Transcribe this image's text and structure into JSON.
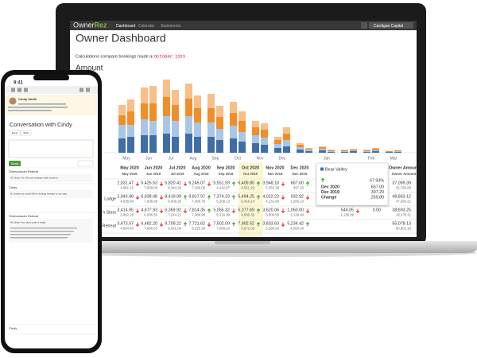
{
  "nav": {
    "brand_a": "Owner",
    "brand_b": "Rez",
    "links": [
      "Dashboard",
      "Calendar",
      "Statements"
    ],
    "user": "Cardigan Capital"
  },
  "page": {
    "title": "Owner Dashboard",
    "note": "Calculations compare bookings made as of",
    "date": "October 13th.",
    "section": "Amount"
  },
  "chart_data": {
    "type": "bar",
    "stacked": true,
    "categories": [
      "May",
      null,
      "Jun",
      null,
      "Jul",
      null,
      "Aug",
      null,
      "Sep",
      null,
      "Oct",
      null,
      "Nov",
      null,
      "Dec",
      null,
      null,
      null,
      "Jan",
      null,
      null,
      null,
      "Feb",
      null,
      "Mar",
      null
    ],
    "ylim": [
      0,
      100
    ],
    "series": [
      {
        "color": "#3f6ea6",
        "values": [
          18,
          20,
          22,
          22,
          24,
          20,
          24,
          20,
          20,
          16,
          18,
          14,
          12,
          10,
          6,
          8,
          4,
          2,
          3,
          1,
          1,
          2,
          1,
          2,
          1,
          1
        ]
      },
      {
        "color": "#a8c7e6",
        "values": [
          17,
          15,
          20,
          18,
          22,
          20,
          22,
          18,
          18,
          14,
          16,
          12,
          10,
          9,
          5,
          8,
          3,
          2,
          2,
          1,
          1,
          1,
          1,
          1,
          0,
          1
        ]
      },
      {
        "color": "#f08e2a",
        "values": [
          12,
          17,
          20,
          22,
          24,
          20,
          22,
          18,
          18,
          15,
          16,
          14,
          10,
          10,
          5,
          8,
          3,
          1,
          2,
          1,
          1,
          1,
          1,
          2,
          1,
          1
        ]
      },
      {
        "color": "#f8bf88",
        "values": [
          13,
          15,
          20,
          22,
          22,
          19,
          19,
          16,
          18,
          14,
          14,
          12,
          8,
          8,
          4,
          8,
          2,
          1,
          1,
          1,
          1,
          1,
          1,
          1,
          0,
          0
        ]
      }
    ]
  },
  "table": {
    "columns": [
      {
        "cur": "May 2020",
        "prev": "May 2019"
      },
      {
        "cur": "Jun 2020",
        "prev": "Jun 2019"
      },
      {
        "cur": "Jul 2020",
        "prev": "Jul 2019"
      },
      {
        "cur": "Aug 2020",
        "prev": "Aug 2019"
      },
      {
        "cur": "Sep 2020",
        "prev": "Sep 2019"
      },
      {
        "cur": "Oct 2020",
        "prev": "Oct 2019",
        "highlight": true
      },
      {
        "cur": "Nov 2020",
        "prev": "Nov 2019"
      },
      {
        "cur": "Dec 2020",
        "prev": "Dec 2019"
      },
      {
        "cur": null,
        "prev": null
      },
      {
        "cur": null,
        "prev": null
      },
      {
        "cur": null,
        "prev": null
      },
      {
        "cur": "Owner Amount",
        "prev": "Owner Amount"
      }
    ],
    "rows": [
      {
        "label": null,
        "cells": [
          {
            "cur": "2,031.47",
            "prev": "4,061.15",
            "trend": "down"
          },
          {
            "cur": "6,425.53",
            "prev": "7,608.06",
            "trend": "down"
          },
          {
            "cur": "5,820.41",
            "prev": "8,344.26",
            "trend": "down"
          },
          {
            "cur": "6,245.07",
            "prev": "7,185.05",
            "trend": "down"
          },
          {
            "cur": "5,551.93",
            "prev": "4,142.87",
            "trend": "up"
          },
          {
            "cur": "6,409.80",
            "prev": "4,551.29",
            "trend": "up"
          },
          {
            "cur": "3,948.18",
            "prev": "6,353.38",
            "trend": "down"
          },
          {
            "cur": "667.00",
            "prev": "397.20",
            "trend": "up"
          },
          null,
          null,
          null,
          {
            "cur": "37,099.39",
            "prev": "32,780.80"
          }
        ]
      },
      {
        "label": "Lodge",
        "cells": [
          {
            "cur": "2,943.48",
            "prev": "4,035.84",
            "trend": "down"
          },
          {
            "cur": "6,938.08",
            "prev": "7,005.58",
            "trend": "down"
          },
          {
            "cur": "8,419.09",
            "prev": "8,009.28",
            "trend": "up"
          },
          {
            "cur": "9,817.97",
            "prev": "7,386.78",
            "trend": "up"
          },
          {
            "cur": "7,374.23",
            "prev": "5,208.13",
            "trend": "up"
          },
          {
            "cur": "5,494.25",
            "prev": "5,416.14",
            "trend": "up"
          },
          {
            "cur": "4,022.23",
            "prev": "4,131.80",
            "trend": "down"
          },
          {
            "cur": "932.92",
            "prev": "1,265.10",
            "trend": "down"
          },
          null,
          null,
          null,
          {
            "cur": "48,863.12",
            "prev": "47,393.21"
          }
        ]
      },
      {
        "label": "h Stars",
        "cells": [
          {
            "cur": "3,414.95",
            "prev": "3,882.26",
            "trend": "down"
          },
          {
            "cur": "4,677.93",
            "prev": "6,006.55",
            "trend": "down"
          },
          {
            "cur": "6,369.92",
            "prev": "7,244.21",
            "trend": "down"
          },
          {
            "cur": "7,814.35",
            "prev": "7,388.98",
            "trend": "up"
          },
          {
            "cur": "5,055.32",
            "prev": "5,316.99",
            "trend": "down"
          },
          {
            "cur": "5,277.69",
            "prev": "4,686.38",
            "trend": "up"
          },
          {
            "cur": "3,620.06",
            "prev": "3,809.58",
            "trend": "down"
          },
          {
            "cur": "1,050.00",
            "prev": "1,139.40",
            "trend": "down"
          },
          null,
          {
            "cur": "546.05",
            "prev": "1,136.09",
            "trend": "down"
          },
          {
            "cur": "0.00"
          },
          {
            "cur": "38,693.25",
            "prev": "42,178.11"
          }
        ]
      },
      {
        "label": "Retreat",
        "cells": [
          {
            "cur": "3,473.57",
            "prev": "4,954.43",
            "trend": "down"
          },
          {
            "cur": "6,482.20",
            "prev": "7,658.53",
            "trend": "down"
          },
          {
            "cur": "9,709.22",
            "prev": "9,341.09",
            "trend": "up"
          },
          {
            "cur": "7,721.62",
            "prev": "8,225.39",
            "trend": "down"
          },
          {
            "cur": "7,502.09",
            "prev": "7,008.10",
            "trend": "up"
          },
          {
            "cur": "7,992.52",
            "prev": "5,671.05",
            "trend": "up"
          },
          {
            "cur": "3,833.63",
            "prev": "5,160.93",
            "trend": "down"
          },
          {
            "cur": "5,234.42",
            "prev": "4,580.00",
            "trend": "up"
          },
          null,
          null,
          null,
          {
            "cur": "55,078.13",
            "prev": "50,801.10"
          }
        ]
      }
    ]
  },
  "tooltip": {
    "title": "Bear Valley",
    "percent": "67.93%",
    "rows": [
      {
        "label": "Dec 2020",
        "value": "667.00"
      },
      {
        "label": "Dec 2019",
        "value": "397.20"
      },
      {
        "label": "Change",
        "value": "269.80"
      }
    ]
  },
  "phone": {
    "time": "9:41",
    "contact": "Cindy Smith",
    "heading": "Conversation with Cindy",
    "tabs": [
      "Email",
      "SMS"
    ],
    "send": "Send",
    "messages": [
      {
        "from": "Shenandoah Retreat",
        "text": "Hi Cindy, Yes. We can arrange early check-in."
      },
      {
        "from": "Cindy",
        "text": "Hi, thanks so much! We're looking forward to our stay."
      },
      {
        "from": "Shenandoah Retreat",
        "text": "Hi Cindy! Your door code is ready."
      },
      {
        "from": "Cindy",
        "text": null
      }
    ]
  }
}
